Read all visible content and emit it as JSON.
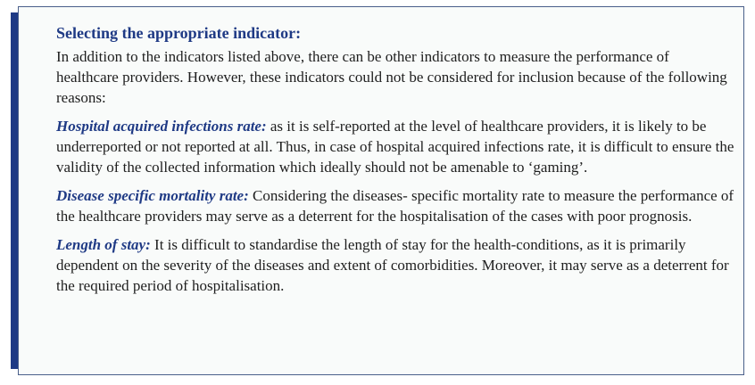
{
  "theme": {
    "accent": "#1f3a85",
    "box_background": "#f9fbfa",
    "border": "#4a5f8a"
  },
  "box": {
    "heading": "Selecting the appropriate indicator:",
    "intro": "In addition to the indicators listed above, there can be other indicators to measure the performance of healthcare providers. However, these indicators could not be considered for inclusion because of the following reasons:",
    "items": [
      {
        "term": "Hospital acquired infections rate:",
        "text": " as it is self-reported at the level of healthcare providers, it is likely to be underreported or not reported at all. Thus, in case of hospital acquired infections rate, it is difficult to ensure the validity of the collected information which ideally should not be amenable to ‘gaming’."
      },
      {
        "term": "Disease specific mortality rate:",
        "text": " Considering the diseases- specific mortality rate to measure the performance of the healthcare providers may serve as a deterrent for the hospitalisation of the cases with poor prognosis."
      },
      {
        "term": "Length of stay:",
        "text": " It is difficult to standardise the length of stay for the health-conditions, as it is primarily dependent on the severity of the diseases and extent of comorbidities. Moreover, it may serve as a deterrent for the required period of hospitalisation."
      }
    ]
  }
}
